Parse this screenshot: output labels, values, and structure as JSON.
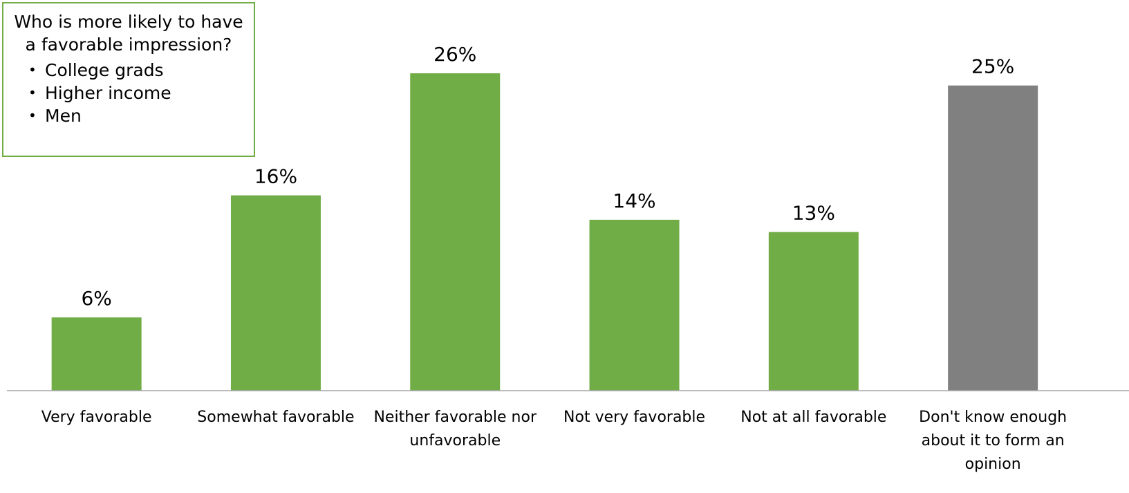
{
  "chart_data": {
    "type": "bar",
    "categories": [
      "Very favorable",
      "Somewhat favorable",
      "Neither favorable nor unfavorable",
      "Not very favorable",
      "Not at all favorable",
      "Don't know enough about it to form an opinion"
    ],
    "category_lines": [
      [
        "Very favorable"
      ],
      [
        "Somewhat favorable"
      ],
      [
        "Neither favorable nor",
        "unfavorable"
      ],
      [
        "Not very favorable"
      ],
      [
        "Not at all favorable"
      ],
      [
        "Don't know enough",
        "about it to form an",
        "opinion"
      ]
    ],
    "values": [
      6,
      16,
      26,
      14,
      13,
      25
    ],
    "data_labels": [
      "6%",
      "16%",
      "26%",
      "14%",
      "13%",
      "25%"
    ],
    "colors": [
      "#70AD47",
      "#70AD47",
      "#70AD47",
      "#70AD47",
      "#70AD47",
      "#808080"
    ],
    "unit": "%",
    "ylim": [
      0,
      26
    ],
    "grid": false,
    "title": "",
    "xlabel": "",
    "ylabel": ""
  },
  "callout": {
    "title": "Who is more likely to have a favorable impression?",
    "items": [
      "College grads",
      "Higher income",
      "Men"
    ],
    "border_color": "#70AD47"
  }
}
